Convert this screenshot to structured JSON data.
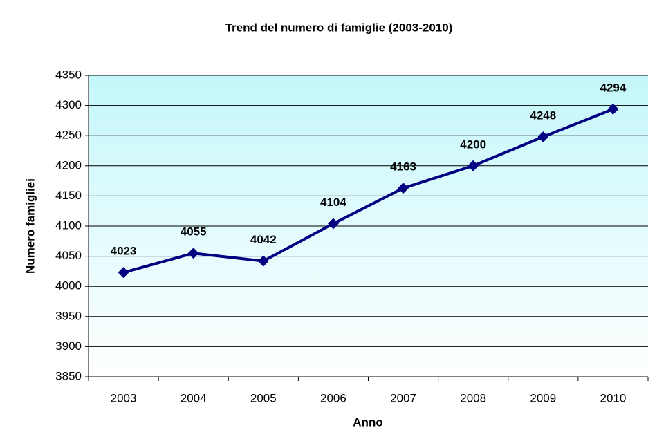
{
  "chart_data": {
    "type": "line",
    "title": "Trend del numero di famiglie (2003-2010)",
    "x_label": "Anno",
    "y_label": "Numero famigliei",
    "categories": [
      "2003",
      "2004",
      "2005",
      "2006",
      "2007",
      "2008",
      "2009",
      "2010"
    ],
    "values": [
      4023,
      4055,
      4042,
      4104,
      4163,
      4200,
      4248,
      4294
    ],
    "color": "#000080",
    "ylim": [
      3850,
      4350
    ],
    "yticks": [
      3850,
      3900,
      3950,
      4000,
      4050,
      4100,
      4150,
      4200,
      4250,
      4300,
      4350
    ],
    "grid": true
  }
}
